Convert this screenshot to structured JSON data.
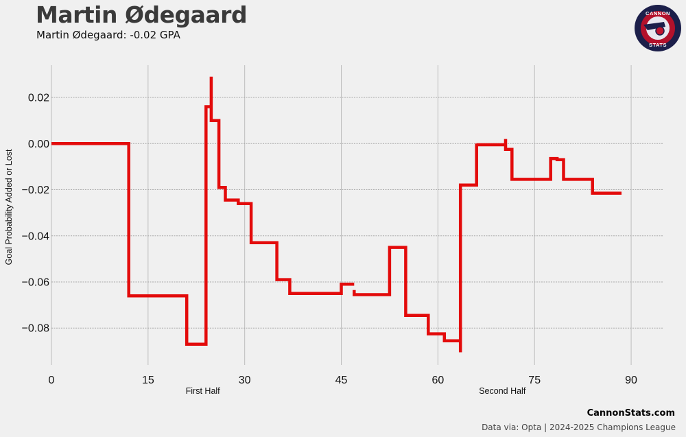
{
  "header": {
    "title": "Martin Ødegaard",
    "subtitle": "Martin Ødegaard: -0.02 GPA"
  },
  "logo": {
    "line1": "CANNON",
    "line2": "STATS",
    "colors": {
      "outer": "#1c1f4a",
      "ring": "#b3112b",
      "inner": "#e8e8ef",
      "accent": "#c0152f"
    }
  },
  "footer": {
    "site": "CannonStats.com",
    "source": "Data via: Opta | 2024-2025 Champions League"
  },
  "colors": {
    "background": "#f0f0f0",
    "line": "#e30b0b",
    "grid": "#bcbcbc"
  },
  "chart_data": {
    "type": "line",
    "step": true,
    "grid": true,
    "xlabel": "",
    "ylabel": "Goal Probability Added or Lost",
    "xlim": [
      0,
      95
    ],
    "ylim": [
      -0.096,
      0.034
    ],
    "xticks": [
      0,
      15,
      30,
      45,
      60,
      75,
      90
    ],
    "yticks": [
      -0.08,
      -0.06,
      -0.04,
      -0.02,
      0.0,
      0.02
    ],
    "ytick_labels": [
      "−0.08",
      "−0.06",
      "−0.04",
      "−0.02",
      "0.00",
      "0.02"
    ],
    "half_labels": [
      {
        "text": "First Half",
        "x": 23.5
      },
      {
        "text": "Second Half",
        "x": 70
      }
    ],
    "series": [
      {
        "values": [
          [
            0,
            0.0
          ],
          [
            12,
            0.0
          ],
          [
            12,
            -0.066
          ],
          [
            21,
            -0.066
          ],
          [
            21,
            -0.087
          ],
          [
            24,
            -0.087
          ],
          [
            24,
            0.016
          ],
          [
            24.8,
            0.016
          ],
          [
            24.8,
            0.029
          ],
          [
            24.8,
            0.01
          ],
          [
            26,
            0.01
          ],
          [
            26,
            -0.019
          ],
          [
            27,
            -0.019
          ],
          [
            27,
            -0.0245
          ],
          [
            29,
            -0.0245
          ],
          [
            29,
            -0.026
          ],
          [
            31,
            -0.026
          ],
          [
            31,
            -0.043
          ],
          [
            35,
            -0.043
          ],
          [
            35,
            -0.059
          ],
          [
            37,
            -0.059
          ],
          [
            37,
            -0.065
          ],
          [
            45,
            -0.065
          ],
          [
            45,
            -0.061
          ],
          [
            47,
            -0.061
          ]
        ]
      },
      {
        "values": [
          [
            47,
            -0.0635
          ],
          [
            47,
            -0.0655
          ],
          [
            52.5,
            -0.0655
          ],
          [
            52.5,
            -0.045
          ],
          [
            55,
            -0.045
          ],
          [
            55,
            -0.0745
          ],
          [
            58.5,
            -0.0745
          ],
          [
            58.5,
            -0.0825
          ],
          [
            61,
            -0.0825
          ],
          [
            61,
            -0.0855
          ],
          [
            63.5,
            -0.0855
          ],
          [
            63.5,
            -0.0905
          ],
          [
            63.5,
            -0.018
          ],
          [
            66,
            -0.018
          ],
          [
            66,
            0.0
          ],
          [
            66,
            -0.0005
          ],
          [
            70.5,
            -0.0005
          ],
          [
            70.5,
            0.002
          ],
          [
            70.5,
            -0.0025
          ],
          [
            71.5,
            -0.0025
          ],
          [
            71.5,
            -0.0155
          ],
          [
            77.5,
            -0.0155
          ],
          [
            77.5,
            -0.0065
          ],
          [
            78.5,
            -0.0065
          ],
          [
            78.5,
            -0.007
          ],
          [
            79.5,
            -0.007
          ],
          [
            79.5,
            -0.0155
          ],
          [
            84,
            -0.0155
          ],
          [
            84,
            -0.0215
          ],
          [
            88.5,
            -0.0215
          ]
        ]
      }
    ]
  }
}
